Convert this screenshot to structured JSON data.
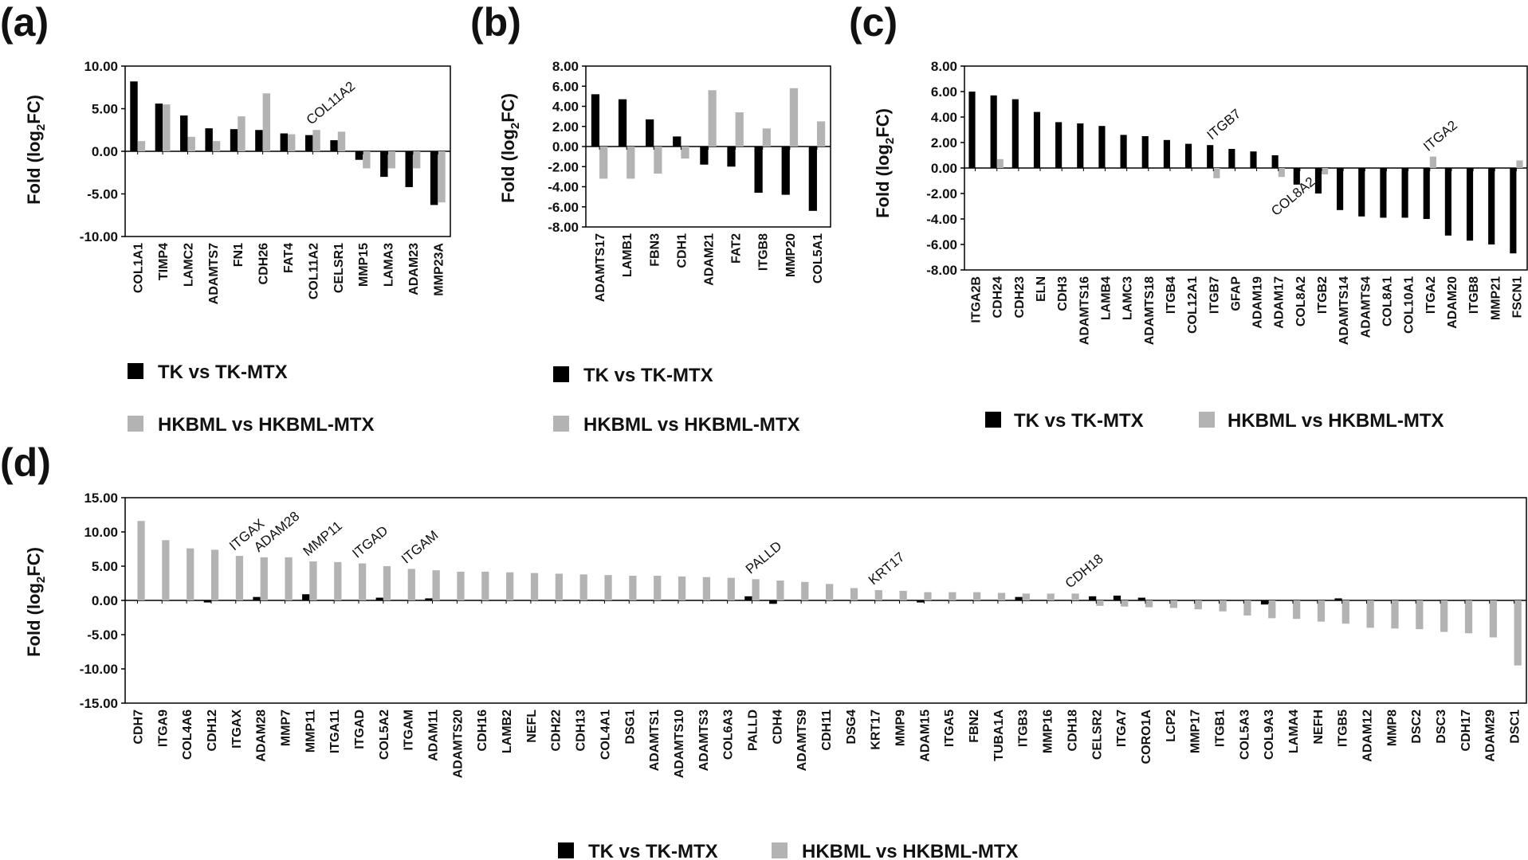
{
  "series_names": [
    "TK vs TK-MTX",
    "HKBML vs HKBML-MTX"
  ],
  "colors": {
    "tk": "#000000",
    "hkbml": "#b3b3b3"
  },
  "ylabel": {
    "prefix": "Fold (log",
    "sub": "2",
    "suffix": "FC)"
  },
  "chart_data": [
    {
      "panel": "(a)",
      "type": "bar",
      "ylim": [
        -10,
        10
      ],
      "ticks": [
        "10.00",
        "5.00",
        "0.00",
        "-5.00",
        "-10.00"
      ],
      "tick_values": [
        10,
        5,
        0,
        -5,
        -10
      ],
      "categories": [
        "COL1A1",
        "TIMP4",
        "LAMC2",
        "ADAMTS7",
        "FN1",
        "CDH26",
        "FAT4",
        "COL11A2",
        "CELSR1",
        "MMP15",
        "LAMA3",
        "ADAM23",
        "MMP23A"
      ],
      "series": [
        {
          "name": "TK vs TK-MTX",
          "values": [
            8.2,
            5.6,
            4.2,
            2.7,
            2.6,
            2.5,
            2.1,
            1.9,
            1.3,
            -1.0,
            -3.0,
            -4.2,
            -6.3
          ]
        },
        {
          "name": "HKBML vs HKBML-MTX",
          "values": [
            1.2,
            5.5,
            1.7,
            1.2,
            4.1,
            6.8,
            2.0,
            2.5,
            2.3,
            -2.0,
            -2.0,
            -2.0,
            -6.0
          ]
        }
      ],
      "annotations": [
        {
          "text": "COL11A2",
          "category": "COL11A2"
        }
      ],
      "legend_position": "below"
    },
    {
      "panel": "(b)",
      "type": "bar",
      "ylim": [
        -8,
        8
      ],
      "ticks": [
        "8.00",
        "6.00",
        "4.00",
        "2.00",
        "0.00",
        "-2.00",
        "-4.00",
        "-6.00",
        "-8.00"
      ],
      "tick_values": [
        8,
        6,
        4,
        2,
        0,
        -2,
        -4,
        -6,
        -8
      ],
      "categories": [
        "ADAMTS17",
        "LAMB1",
        "FBN3",
        "CDH1",
        "ADAM21",
        "FAT2",
        "ITGB8",
        "MMP20",
        "COL5A1"
      ],
      "series": [
        {
          "name": "TK vs TK-MTX",
          "values": [
            5.2,
            4.7,
            2.7,
            1.0,
            -1.8,
            -2.0,
            -4.6,
            -4.8,
            -6.4
          ]
        },
        {
          "name": "HKBML vs HKBML-MTX",
          "values": [
            -3.2,
            -3.2,
            -2.7,
            -1.2,
            5.6,
            3.4,
            1.8,
            5.8,
            2.5
          ]
        }
      ],
      "annotations": [],
      "legend_position": "below"
    },
    {
      "panel": "(c)",
      "type": "bar",
      "ylim": [
        -8,
        8
      ],
      "ticks": [
        "8.00",
        "6.00",
        "4.00",
        "2.00",
        "0.00",
        "-2.00",
        "-4.00",
        "-6.00",
        "-8.00"
      ],
      "tick_values": [
        8,
        6,
        4,
        2,
        0,
        -2,
        -4,
        -6,
        -8
      ],
      "categories": [
        "ITGA2B",
        "CDH24",
        "CDH23",
        "ELN",
        "CDH3",
        "ADAMTS16",
        "LAMB4",
        "LAMC3",
        "ADAMTS18",
        "ITGB4",
        "COL12A1",
        "ITGB7",
        "GFAP",
        "ADAM19",
        "ADAM17",
        "COL8A2",
        "ITGB2",
        "ADAMTS14",
        "ADAMTS4",
        "COL8A1",
        "COL10A1",
        "ITGA2",
        "ADAM20",
        "ITGB8",
        "MMP21",
        "FSCN1"
      ],
      "series": [
        {
          "name": "TK vs TK-MTX",
          "values": [
            6.0,
            5.7,
            5.4,
            4.4,
            3.6,
            3.5,
            3.3,
            2.6,
            2.5,
            2.2,
            1.9,
            1.8,
            1.5,
            1.3,
            1.0,
            -1.3,
            -2.0,
            -3.3,
            -3.8,
            -3.9,
            -3.9,
            -4.0,
            -5.3,
            -5.7,
            -6.0,
            -6.7
          ]
        },
        {
          "name": "HKBML vs HKBML-MTX",
          "values": [
            0,
            0.7,
            0,
            0,
            0,
            0,
            0,
            0,
            0,
            0,
            0,
            -0.8,
            0,
            0,
            -0.7,
            0,
            -0.5,
            0,
            0,
            0,
            0,
            0.9,
            0,
            0,
            0,
            0.6
          ]
        }
      ],
      "annotations": [
        {
          "text": "ITGB7",
          "category": "ITGB7"
        },
        {
          "text": "COL8A2",
          "category": "COL8A2"
        },
        {
          "text": "ITGA2",
          "category": "ITGA2"
        }
      ],
      "legend_position": "below"
    },
    {
      "panel": "(d)",
      "type": "bar",
      "ylim": [
        -15,
        15
      ],
      "ticks": [
        "15.00",
        "10.00",
        "5.00",
        "0.00",
        "-5.00",
        "-10.00",
        "-15.00"
      ],
      "tick_values": [
        15,
        10,
        5,
        0,
        -5,
        -10,
        -15
      ],
      "categories": [
        "CDH7",
        "ITGA9",
        "COL4A6",
        "CDH12",
        "ITGAX",
        "ADAM28",
        "MMP7",
        "MMP11",
        "ITGA11",
        "ITGAD",
        "COL5A2",
        "ITGAM",
        "ADAM11",
        "ADAMTS20",
        "CDH16",
        "LAMB2",
        "NEFL",
        "CDH22",
        "CDH13",
        "COL4A1",
        "DSG1",
        "ADAMTS1",
        "ADAMTS10",
        "ADAMTS3",
        "COL6A3",
        "PALLD",
        "CDH4",
        "ADAMTS9",
        "CDH11",
        "DSG4",
        "KRT17",
        "MMP9",
        "ADAM15",
        "ITGA5",
        "FBN2",
        "TUBA1A",
        "ITGB3",
        "MMP16",
        "CDH18",
        "CELSR2",
        "ITGA7",
        "CORO1A",
        "LCP2",
        "MMP17",
        "ITGB1",
        "COL5A3",
        "COL9A3",
        "LAMA4",
        "NEFH",
        "ITGB5",
        "ADAM12",
        "MMP8",
        "DSC2",
        "DSC3",
        "CDH17",
        "ADAM29",
        "DSC1"
      ],
      "series": [
        {
          "name": "TK vs TK-MTX",
          "values": [
            0,
            0,
            0,
            -0.3,
            0,
            0.5,
            0,
            0.9,
            0,
            0,
            0.4,
            0,
            0.3,
            0,
            0,
            0,
            0,
            0,
            0,
            0,
            0,
            0,
            0,
            0,
            0,
            0.6,
            -0.5,
            0,
            0,
            0,
            0,
            0,
            -0.3,
            0,
            0,
            0,
            0.5,
            0,
            0,
            0.6,
            0.7,
            0.4,
            0,
            0,
            0,
            0,
            -0.6,
            0,
            0,
            0.3,
            0,
            0,
            0,
            0,
            0,
            0,
            0
          ]
        },
        {
          "name": "HKBML vs HKBML-MTX",
          "values": [
            11.6,
            8.8,
            7.6,
            7.4,
            6.5,
            6.3,
            6.3,
            5.7,
            5.6,
            5.4,
            5.0,
            4.6,
            4.4,
            4.2,
            4.2,
            4.1,
            4.0,
            3.9,
            3.8,
            3.7,
            3.6,
            3.6,
            3.5,
            3.4,
            3.3,
            3.1,
            2.9,
            2.7,
            2.4,
            1.8,
            1.5,
            1.4,
            1.2,
            1.2,
            1.2,
            1.1,
            1.0,
            1.0,
            1.0,
            -0.8,
            -0.9,
            -1.0,
            -1.1,
            -1.3,
            -1.6,
            -2.2,
            -2.6,
            -2.7,
            -3.1,
            -3.4,
            -4.0,
            -4.1,
            -4.2,
            -4.6,
            -4.8,
            -5.4,
            -9.5
          ]
        }
      ],
      "annotations": [
        {
          "text": "ITGAX",
          "category": "ITGAX"
        },
        {
          "text": "ADAM28",
          "category": "ADAM28"
        },
        {
          "text": "MMP11",
          "category": "MMP11"
        },
        {
          "text": "ITGAD",
          "category": "ITGAD"
        },
        {
          "text": "ITGAM",
          "category": "ITGAM"
        },
        {
          "text": "PALLD",
          "category": "PALLD"
        },
        {
          "text": "KRT17",
          "category": "KRT17"
        },
        {
          "text": "CDH18",
          "category": "CDH18"
        }
      ],
      "legend_position": "bottom"
    }
  ]
}
